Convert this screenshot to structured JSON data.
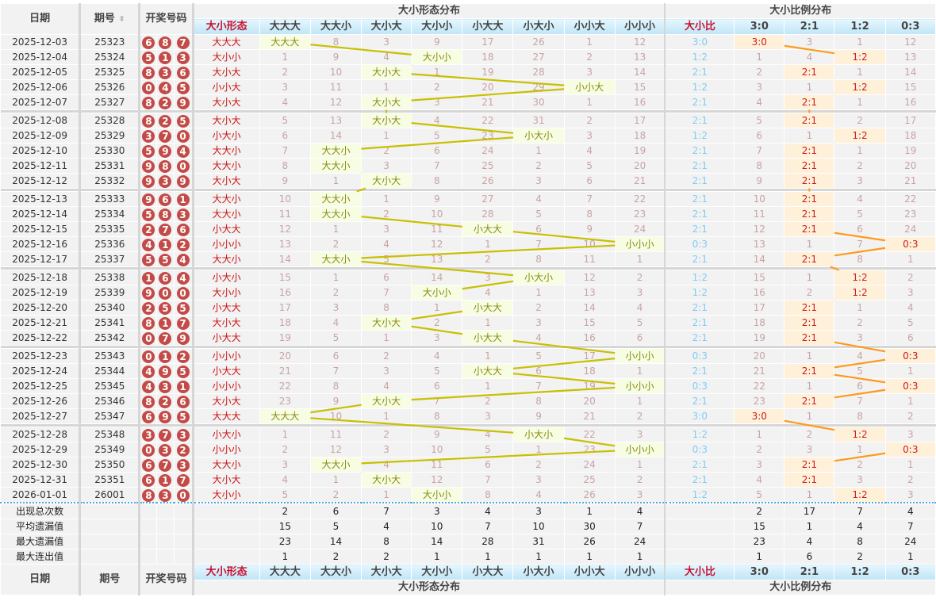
{
  "headers": {
    "date": "日期",
    "issue": "期号",
    "numbers": "开奖号码",
    "pattern_section": "大小形态分布",
    "ratio_section": "大小比例分布",
    "pattern_col": "大小形态",
    "ratio_col": "大小比",
    "patterns": [
      "大大大",
      "大大小",
      "大小大",
      "大小小",
      "小大大",
      "小大小",
      "小小大",
      "小小小"
    ],
    "ratios": [
      "3:0",
      "2:1",
      "1:2",
      "0:3"
    ],
    "sort_icon": "sort-updown-icon"
  },
  "colors": {
    "ball": "#c34a47",
    "pattern_line": "#c8c000",
    "ratio_line": "#ff9a1a",
    "header_bg": "#bfe5f7"
  },
  "rows": [
    {
      "date": "2025-12-03",
      "issue": "25323",
      "nums": [
        "6",
        "8",
        "7"
      ],
      "pattern": "大大大",
      "p": [
        "大大大",
        8,
        3,
        9,
        17,
        26,
        1,
        12
      ],
      "ratio": "3:0",
      "r": [
        "3:0",
        3,
        1,
        12
      ]
    },
    {
      "date": "2025-12-04",
      "issue": "25324",
      "nums": [
        "5",
        "1",
        "3"
      ],
      "pattern": "大小小",
      "p": [
        1,
        9,
        4,
        "大小小",
        18,
        27,
        2,
        13
      ],
      "ratio": "1:2",
      "r": [
        1,
        4,
        "1:2",
        13
      ]
    },
    {
      "date": "2025-12-05",
      "issue": "25325",
      "nums": [
        "8",
        "3",
        "6"
      ],
      "pattern": "大小大",
      "p": [
        2,
        10,
        "大小大",
        1,
        19,
        28,
        3,
        14
      ],
      "ratio": "2:1",
      "r": [
        2,
        "2:1",
        1,
        14
      ]
    },
    {
      "date": "2025-12-06",
      "issue": "25326",
      "nums": [
        "0",
        "4",
        "5"
      ],
      "pattern": "小小大",
      "p": [
        3,
        11,
        1,
        2,
        20,
        29,
        "小小大",
        15
      ],
      "ratio": "1:2",
      "r": [
        3,
        1,
        "1:2",
        15
      ]
    },
    {
      "date": "2025-12-07",
      "issue": "25327",
      "nums": [
        "8",
        "2",
        "9"
      ],
      "pattern": "大小大",
      "p": [
        4,
        12,
        "大小大",
        3,
        21,
        30,
        1,
        16
      ],
      "ratio": "2:1",
      "r": [
        4,
        "2:1",
        1,
        16
      ]
    },
    {
      "date": "2025-12-08",
      "issue": "25328",
      "nums": [
        "8",
        "2",
        "5"
      ],
      "pattern": "大小大",
      "p": [
        5,
        13,
        "大小大",
        4,
        22,
        31,
        2,
        17
      ],
      "ratio": "2:1",
      "r": [
        5,
        "2:1",
        2,
        17
      ]
    },
    {
      "date": "2025-12-09",
      "issue": "25329",
      "nums": [
        "3",
        "7",
        "0"
      ],
      "pattern": "小大小",
      "p": [
        6,
        14,
        1,
        5,
        23,
        "小大小",
        3,
        18
      ],
      "ratio": "1:2",
      "r": [
        6,
        1,
        "1:2",
        18
      ]
    },
    {
      "date": "2025-12-10",
      "issue": "25330",
      "nums": [
        "5",
        "9",
        "4"
      ],
      "pattern": "大大小",
      "p": [
        7,
        "大大小",
        2,
        6,
        24,
        1,
        4,
        19
      ],
      "ratio": "2:1",
      "r": [
        7,
        "2:1",
        1,
        19
      ]
    },
    {
      "date": "2025-12-11",
      "issue": "25331",
      "nums": [
        "9",
        "8",
        "0"
      ],
      "pattern": "大大小",
      "p": [
        8,
        "大大小",
        3,
        7,
        25,
        2,
        5,
        20
      ],
      "ratio": "2:1",
      "r": [
        8,
        "2:1",
        2,
        20
      ]
    },
    {
      "date": "2025-12-12",
      "issue": "25332",
      "nums": [
        "9",
        "3",
        "9"
      ],
      "pattern": "大小大",
      "p": [
        9,
        1,
        "大小大",
        8,
        26,
        3,
        6,
        21
      ],
      "ratio": "2:1",
      "r": [
        9,
        "2:1",
        3,
        21
      ]
    },
    {
      "date": "2025-12-13",
      "issue": "25333",
      "nums": [
        "9",
        "6",
        "1"
      ],
      "pattern": "大大小",
      "p": [
        10,
        "大大小",
        1,
        9,
        27,
        4,
        7,
        22
      ],
      "ratio": "2:1",
      "r": [
        10,
        "2:1",
        4,
        22
      ]
    },
    {
      "date": "2025-12-14",
      "issue": "25334",
      "nums": [
        "5",
        "8",
        "3"
      ],
      "pattern": "大大小",
      "p": [
        11,
        "大大小",
        2,
        10,
        28,
        5,
        8,
        23
      ],
      "ratio": "2:1",
      "r": [
        11,
        "2:1",
        5,
        23
      ]
    },
    {
      "date": "2025-12-15",
      "issue": "25335",
      "nums": [
        "2",
        "7",
        "6"
      ],
      "pattern": "小大大",
      "p": [
        12,
        1,
        3,
        11,
        "小大大",
        6,
        9,
        24
      ],
      "ratio": "2:1",
      "r": [
        12,
        "2:1",
        6,
        24
      ]
    },
    {
      "date": "2025-12-16",
      "issue": "25336",
      "nums": [
        "4",
        "1",
        "2"
      ],
      "pattern": "小小小",
      "p": [
        13,
        2,
        4,
        12,
        1,
        7,
        10,
        "小小小"
      ],
      "ratio": "0:3",
      "r": [
        13,
        1,
        7,
        "0:3"
      ]
    },
    {
      "date": "2025-12-17",
      "issue": "25337",
      "nums": [
        "5",
        "5",
        "4"
      ],
      "pattern": "大大小",
      "p": [
        14,
        "大大小",
        5,
        13,
        2,
        8,
        11,
        1
      ],
      "ratio": "2:1",
      "r": [
        14,
        "2:1",
        8,
        1
      ]
    },
    {
      "date": "2025-12-18",
      "issue": "25338",
      "nums": [
        "1",
        "6",
        "4"
      ],
      "pattern": "小大小",
      "p": [
        15,
        1,
        6,
        14,
        3,
        "小大小",
        12,
        2
      ],
      "ratio": "1:2",
      "r": [
        15,
        1,
        "1:2",
        2
      ]
    },
    {
      "date": "2025-12-19",
      "issue": "25339",
      "nums": [
        "9",
        "0",
        "0"
      ],
      "pattern": "大小小",
      "p": [
        16,
        2,
        7,
        "大小小",
        4,
        1,
        13,
        3
      ],
      "ratio": "1:2",
      "r": [
        16,
        2,
        "1:2",
        3
      ]
    },
    {
      "date": "2025-12-20",
      "issue": "25340",
      "nums": [
        "2",
        "5",
        "5"
      ],
      "pattern": "小大大",
      "p": [
        17,
        3,
        8,
        1,
        "小大大",
        2,
        14,
        4
      ],
      "ratio": "2:1",
      "r": [
        17,
        "2:1",
        1,
        4
      ]
    },
    {
      "date": "2025-12-21",
      "issue": "25341",
      "nums": [
        "8",
        "1",
        "7"
      ],
      "pattern": "大小大",
      "p": [
        18,
        4,
        "大小大",
        2,
        1,
        3,
        15,
        5
      ],
      "ratio": "2:1",
      "r": [
        18,
        "2:1",
        2,
        5
      ]
    },
    {
      "date": "2025-12-22",
      "issue": "25342",
      "nums": [
        "0",
        "7",
        "9"
      ],
      "pattern": "小大大",
      "p": [
        19,
        5,
        1,
        3,
        "小大大",
        4,
        16,
        6
      ],
      "ratio": "2:1",
      "r": [
        19,
        "2:1",
        3,
        6
      ]
    },
    {
      "date": "2025-12-23",
      "issue": "25343",
      "nums": [
        "0",
        "1",
        "2"
      ],
      "pattern": "小小小",
      "p": [
        20,
        6,
        2,
        4,
        1,
        5,
        17,
        "小小小"
      ],
      "ratio": "0:3",
      "r": [
        20,
        1,
        4,
        "0:3"
      ]
    },
    {
      "date": "2025-12-24",
      "issue": "25344",
      "nums": [
        "4",
        "9",
        "5"
      ],
      "pattern": "小大大",
      "p": [
        21,
        7,
        3,
        5,
        "小大大",
        6,
        18,
        1
      ],
      "ratio": "2:1",
      "r": [
        21,
        "2:1",
        5,
        1
      ]
    },
    {
      "date": "2025-12-25",
      "issue": "25345",
      "nums": [
        "4",
        "3",
        "1"
      ],
      "pattern": "小小小",
      "p": [
        22,
        8,
        4,
        6,
        1,
        7,
        19,
        "小小小"
      ],
      "ratio": "0:3",
      "r": [
        22,
        1,
        6,
        "0:3"
      ]
    },
    {
      "date": "2025-12-26",
      "issue": "25346",
      "nums": [
        "8",
        "2",
        "6"
      ],
      "pattern": "大小大",
      "p": [
        23,
        9,
        "大小大",
        7,
        2,
        8,
        20,
        1
      ],
      "ratio": "2:1",
      "r": [
        23,
        "2:1",
        7,
        1
      ]
    },
    {
      "date": "2025-12-27",
      "issue": "25347",
      "nums": [
        "6",
        "9",
        "5"
      ],
      "pattern": "大大大",
      "p": [
        "大大大",
        10,
        1,
        8,
        3,
        9,
        21,
        2
      ],
      "ratio": "3:0",
      "r": [
        "3:0",
        1,
        8,
        2
      ]
    },
    {
      "date": "2025-12-28",
      "issue": "25348",
      "nums": [
        "3",
        "7",
        "3"
      ],
      "pattern": "小大小",
      "p": [
        1,
        11,
        2,
        9,
        4,
        "小大小",
        22,
        3
      ],
      "ratio": "1:2",
      "r": [
        1,
        2,
        "1:2",
        3
      ]
    },
    {
      "date": "2025-12-29",
      "issue": "25349",
      "nums": [
        "0",
        "3",
        "2"
      ],
      "pattern": "小小小",
      "p": [
        2,
        12,
        3,
        10,
        5,
        1,
        23,
        "小小小"
      ],
      "ratio": "0:3",
      "r": [
        2,
        3,
        1,
        "0:3"
      ]
    },
    {
      "date": "2025-12-30",
      "issue": "25350",
      "nums": [
        "6",
        "7",
        "3"
      ],
      "pattern": "大大小",
      "p": [
        3,
        "大大小",
        4,
        11,
        6,
        2,
        24,
        1
      ],
      "ratio": "2:1",
      "r": [
        3,
        "2:1",
        2,
        1
      ]
    },
    {
      "date": "2025-12-31",
      "issue": "25351",
      "nums": [
        "6",
        "1",
        "7"
      ],
      "pattern": "大小大",
      "p": [
        4,
        1,
        "大小大",
        12,
        7,
        3,
        25,
        2
      ],
      "ratio": "2:1",
      "r": [
        4,
        "2:1",
        3,
        2
      ]
    },
    {
      "date": "2026-01-01",
      "issue": "26001",
      "nums": [
        "8",
        "3",
        "0"
      ],
      "pattern": "大小小",
      "p": [
        5,
        2,
        1,
        "大小小",
        8,
        4,
        26,
        3
      ],
      "ratio": "1:2",
      "r": [
        5,
        1,
        "1:2",
        3
      ]
    }
  ],
  "stats": [
    {
      "label": "出现总次数",
      "p": [
        2,
        6,
        7,
        3,
        4,
        3,
        1,
        4
      ],
      "r": [
        2,
        17,
        7,
        4
      ]
    },
    {
      "label": "平均遗漏值",
      "p": [
        15,
        5,
        4,
        10,
        7,
        10,
        30,
        7
      ],
      "r": [
        15,
        1,
        4,
        7
      ]
    },
    {
      "label": "最大遗漏值",
      "p": [
        23,
        14,
        8,
        14,
        28,
        31,
        26,
        24
      ],
      "r": [
        23,
        4,
        8,
        24
      ]
    },
    {
      "label": "最大连出值",
      "p": [
        1,
        2,
        2,
        1,
        1,
        1,
        1,
        1
      ],
      "r": [
        1,
        6,
        2,
        1
      ]
    }
  ]
}
